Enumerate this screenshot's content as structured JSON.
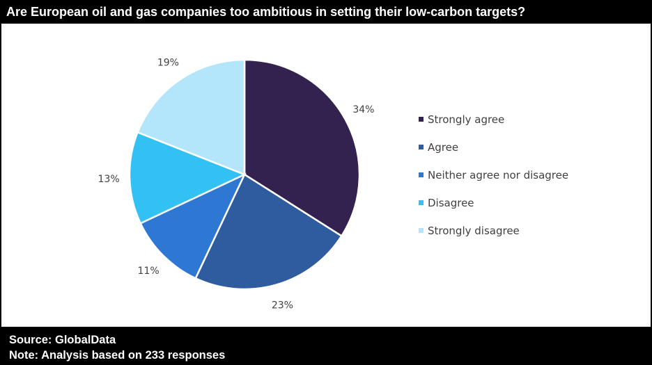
{
  "title": "Are European oil and gas companies too ambitious in setting their low-carbon targets?",
  "footer": {
    "source": "Source: GlobalData",
    "note": "Note: Analysis based on 233 responses"
  },
  "chart_data": {
    "type": "pie",
    "title": "Are European oil and gas companies too ambitious in setting their low-carbon targets?",
    "categories": [
      "Strongly agree",
      "Agree",
      "Neither agree nor disagree",
      "Disagree",
      "Strongly disagree"
    ],
    "values": [
      34,
      23,
      11,
      13,
      19
    ],
    "labels": [
      "34%",
      "23%",
      "11%",
      "13%",
      "19%"
    ],
    "colors": [
      "#33224f",
      "#2f5b9f",
      "#2e77d2",
      "#33c0f3",
      "#b3e6fa"
    ],
    "legend_position": "right",
    "start": "top, clockwise"
  }
}
